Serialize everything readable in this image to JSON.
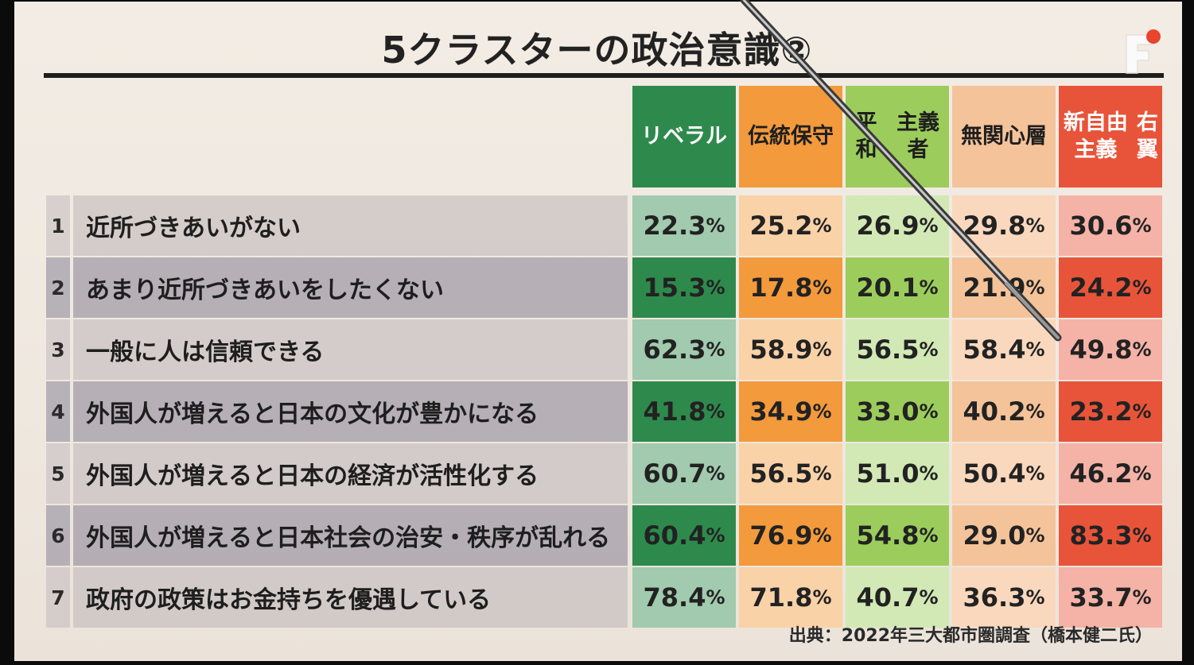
{
  "title": "5クラスターの政治意識②",
  "source": "出典：2022年三大都市圏調査（橋本健二氏）",
  "colors": {
    "リベラル": "#2e8a4c",
    "伝統保守": "#f39a3d",
    "平和主義者": "#9ccd5c",
    "無関心層": "#f5c39a",
    "新自由主義右翼": "#e8543a"
  },
  "chart_data": {
    "type": "table",
    "title": "5クラスターの政治意識②",
    "columns": [
      {
        "label_lines": [
          "リベラル"
        ],
        "name": "リベラル"
      },
      {
        "label_lines": [
          "伝統保守"
        ],
        "name": "伝統保守"
      },
      {
        "label_lines": [
          "平和",
          "主義者"
        ],
        "name": "平和主義者"
      },
      {
        "label_lines": [
          "無関心層"
        ],
        "name": "無関心層"
      },
      {
        "label_lines": [
          "新自由主義",
          "右翼"
        ],
        "name": "新自由主義右翼"
      }
    ],
    "unit": "%",
    "rows": [
      {
        "num": "1",
        "label": "近所づきあいがない",
        "values": [
          22.3,
          25.2,
          26.9,
          29.8,
          30.6
        ]
      },
      {
        "num": "2",
        "label": "あまり近所づきあいをしたくない",
        "values": [
          15.3,
          17.8,
          20.1,
          21.9,
          24.2
        ]
      },
      {
        "num": "3",
        "label": "一般に人は信頼できる",
        "values": [
          62.3,
          58.9,
          56.5,
          58.4,
          49.8
        ]
      },
      {
        "num": "4",
        "label": "外国人が増えると日本の文化が豊かになる",
        "values": [
          41.8,
          34.9,
          33.0,
          40.2,
          23.2
        ]
      },
      {
        "num": "5",
        "label": "外国人が増えると日本の経済が活性化する",
        "values": [
          60.7,
          56.5,
          51.0,
          50.4,
          46.2
        ]
      },
      {
        "num": "6",
        "label": "外国人が増えると日本社会の治安・秩序が乱れる",
        "values": [
          60.4,
          76.9,
          54.8,
          29.0,
          83.3
        ]
      },
      {
        "num": "7",
        "label": "政府の政策はお金持ちを優遇している",
        "values": [
          78.4,
          71.8,
          40.7,
          36.3,
          33.7
        ]
      }
    ]
  }
}
